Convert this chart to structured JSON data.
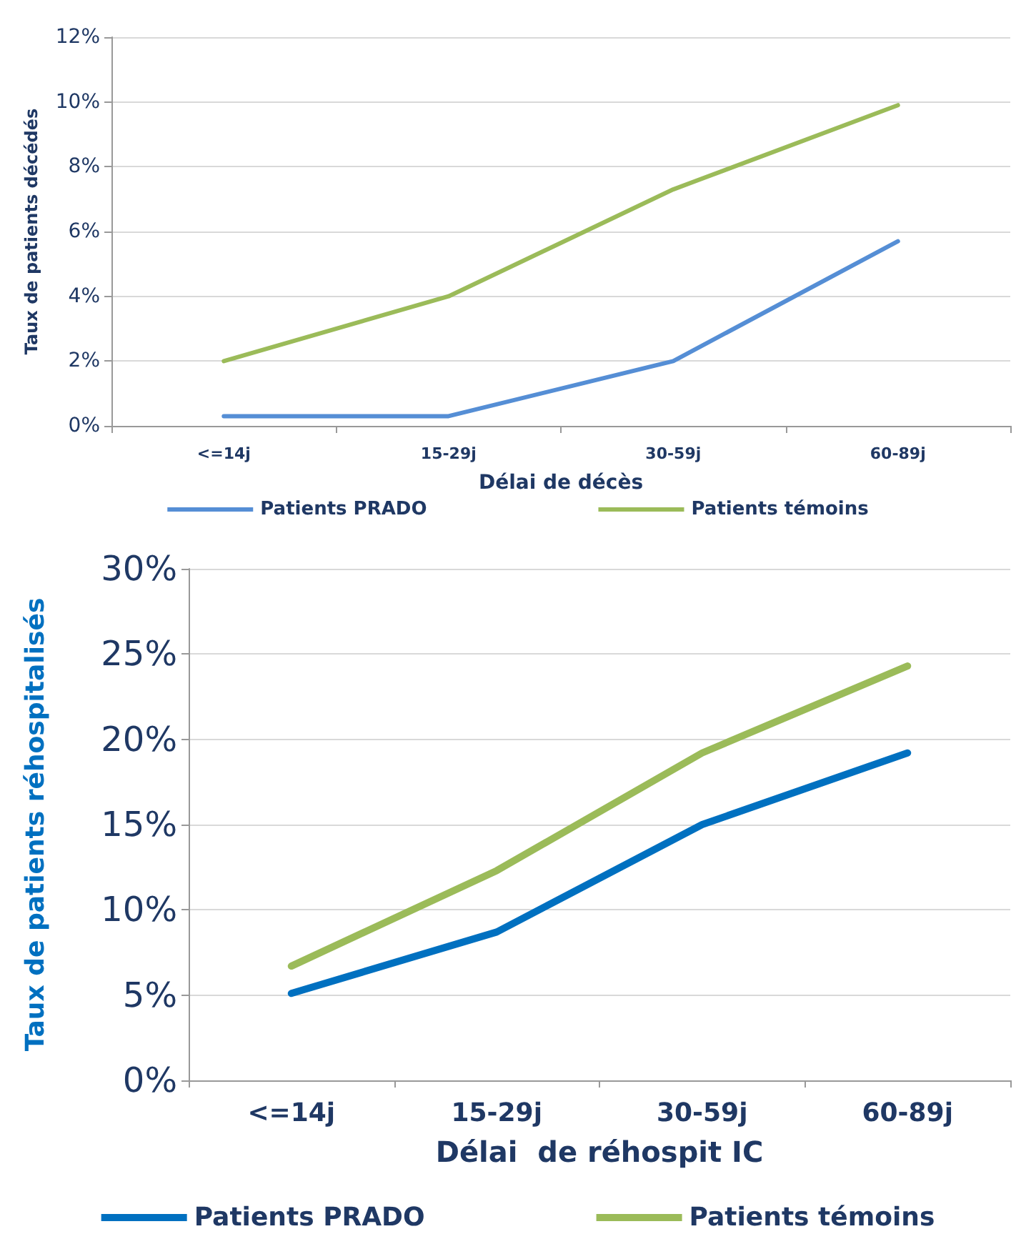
{
  "chart_data": [
    {
      "type": "line",
      "categories": [
        "<=14j",
        "15-29j",
        "30-59j",
        "60-89j"
      ],
      "xlabel": "Délai de décès",
      "ylabel": "Taux de patients décédés",
      "ylim": [
        0,
        12
      ],
      "yticks": [
        {
          "value": 0,
          "label": "0%"
        },
        {
          "value": 2,
          "label": "2%"
        },
        {
          "value": 4,
          "label": "4%"
        },
        {
          "value": 6,
          "label": "6%"
        },
        {
          "value": 8,
          "label": "8%"
        },
        {
          "value": 10,
          "label": "10%"
        },
        {
          "value": 12,
          "label": "12%"
        }
      ],
      "grid": "y",
      "legend": "bottom",
      "marker": "none",
      "line_style": "solid",
      "series": [
        {
          "name": "Patients PRADO",
          "color": "#558ed5",
          "values": [
            0.3,
            0.3,
            2.0,
            5.7
          ]
        },
        {
          "name": "Patients témoins",
          "color": "#9bbb59",
          "values": [
            2.0,
            4.0,
            7.3,
            9.9
          ]
        }
      ]
    },
    {
      "type": "line",
      "categories": [
        "<=14j",
        "15-29j",
        "30-59j",
        "60-89j"
      ],
      "xlabel": "Délai  de réhospit IC",
      "ylabel": "Taux de patients réhospitalisés",
      "ylim": [
        0,
        30
      ],
      "yticks": [
        {
          "value": 0,
          "label": "0%"
        },
        {
          "value": 5,
          "label": "5%"
        },
        {
          "value": 10,
          "label": "10%"
        },
        {
          "value": 15,
          "label": "15%"
        },
        {
          "value": 20,
          "label": "20%"
        },
        {
          "value": 25,
          "label": "25%"
        },
        {
          "value": 30,
          "label": "30%"
        }
      ],
      "grid": "y",
      "legend": "bottom",
      "marker": "none",
      "line_style": "solid",
      "series": [
        {
          "name": "Patients PRADO",
          "color": "#0070c0",
          "values": [
            5.1,
            8.7,
            15.0,
            19.2
          ]
        },
        {
          "name": "Patients témoins",
          "color": "#9bbb59",
          "values": [
            6.7,
            12.3,
            19.2,
            24.3
          ]
        }
      ]
    }
  ]
}
